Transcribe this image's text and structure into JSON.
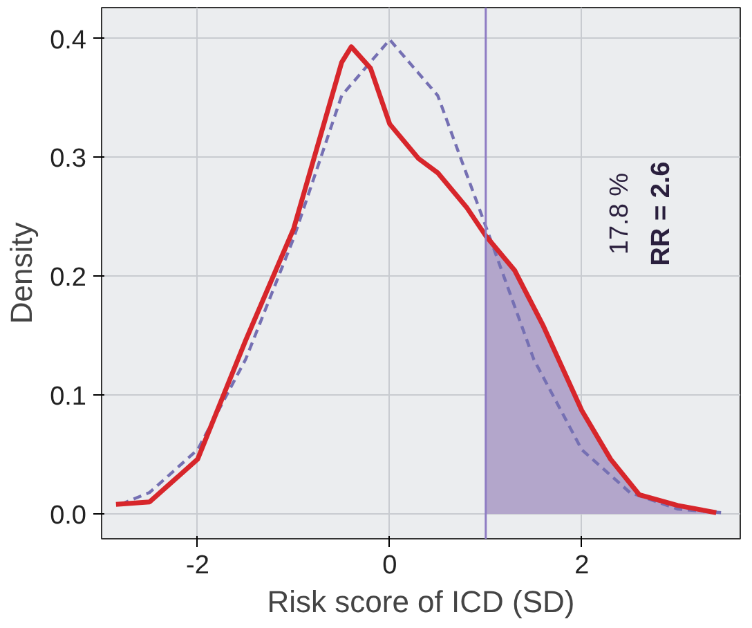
{
  "chart_data": {
    "type": "line",
    "xlabel": "Risk score of ICD (SD)",
    "ylabel": "Density",
    "xlim": [
      -3.0,
      3.65
    ],
    "ylim": [
      -0.021,
      0.426
    ],
    "xticks": [
      -2,
      0,
      2
    ],
    "yticks": [
      {
        "value": 0,
        "label": "0.0"
      },
      {
        "value": 0.1,
        "label": "0.1"
      },
      {
        "value": 0.2,
        "label": "0.2"
      },
      {
        "value": 0.3,
        "label": "0.3"
      },
      {
        "value": 0.4,
        "label": "0.4"
      }
    ],
    "grid": true,
    "series": [
      {
        "type": "area",
        "color": "#b3a6cb",
        "x": [
          1.0,
          1.3,
          1.6,
          2.0,
          2.3,
          2.6,
          3.0,
          3.4
        ],
        "values": [
          0.234,
          0.205,
          0.158,
          0.087,
          0.046,
          0.016,
          0.007,
          0.001
        ]
      },
      {
        "line_style": "dashed",
        "color": "#7570b3",
        "x": [
          -2.8,
          -2.5,
          -2.0,
          -1.5,
          -1.0,
          -0.5,
          0.0,
          0.5,
          1.0,
          1.5,
          2.0,
          2.5,
          3.0,
          3.45
        ],
        "values": [
          0.008,
          0.018,
          0.054,
          0.13,
          0.232,
          0.352,
          0.399,
          0.352,
          0.242,
          0.13,
          0.054,
          0.018,
          0.004,
          0.001
        ]
      },
      {
        "line_style": "solid",
        "color": "#d7262b",
        "x": [
          -2.85,
          -2.5,
          -2.0,
          -1.5,
          -1.0,
          -0.5,
          -0.4,
          -0.2,
          0.0,
          0.3,
          0.5,
          0.8,
          1.0,
          1.3,
          1.6,
          2.0,
          2.3,
          2.6,
          3.0,
          3.4
        ],
        "values": [
          0.008,
          0.01,
          0.046,
          0.146,
          0.24,
          0.38,
          0.393,
          0.375,
          0.328,
          0.299,
          0.287,
          0.258,
          0.234,
          0.205,
          0.158,
          0.087,
          0.046,
          0.016,
          0.007,
          0.001
        ]
      }
    ],
    "ref_lines": [
      {
        "axis": "x",
        "value": 1,
        "color": "#8e7cc3"
      }
    ],
    "annotations": [
      "17.8 %",
      "RR = 2.6"
    ]
  }
}
